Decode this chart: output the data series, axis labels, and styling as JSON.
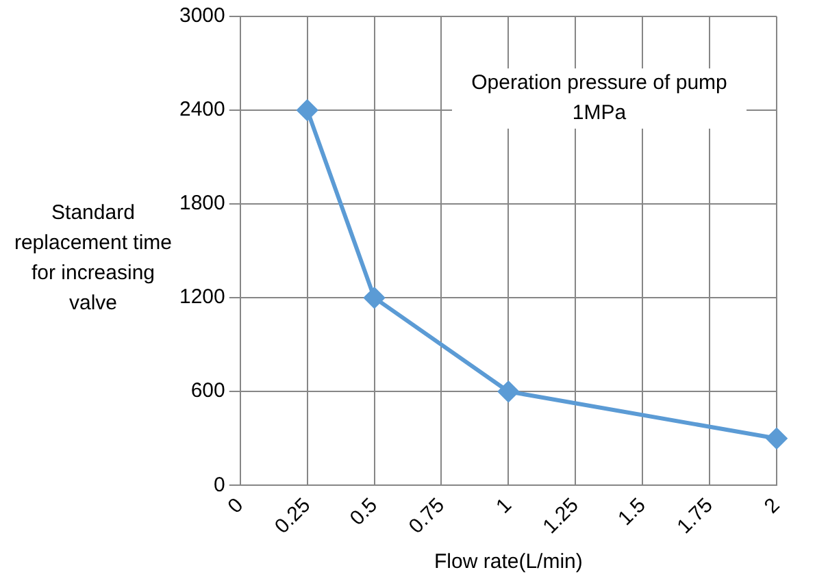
{
  "chart_data": {
    "type": "line",
    "xlabel": "Flow rate(L/min)",
    "ylabel": "Standard replacement time for increasing valve",
    "annotations": [
      "Operation pressure of pump 1MPa"
    ],
    "x": [
      0.25,
      0.5,
      1,
      2
    ],
    "series": [
      {
        "color": "#5b9bd5",
        "values": [
          2400,
          1200,
          600,
          300
        ]
      }
    ],
    "xlim": [
      0,
      2
    ],
    "xticks": [
      0,
      0.25,
      0.5,
      0.75,
      1,
      1.25,
      1.5,
      1.75,
      2
    ],
    "ylim": [
      0,
      3000
    ],
    "yticks": [
      0,
      600,
      1200,
      1800,
      2400,
      3000
    ],
    "grid": true,
    "legend": false,
    "marker": "diamond",
    "line_style": "solid"
  }
}
